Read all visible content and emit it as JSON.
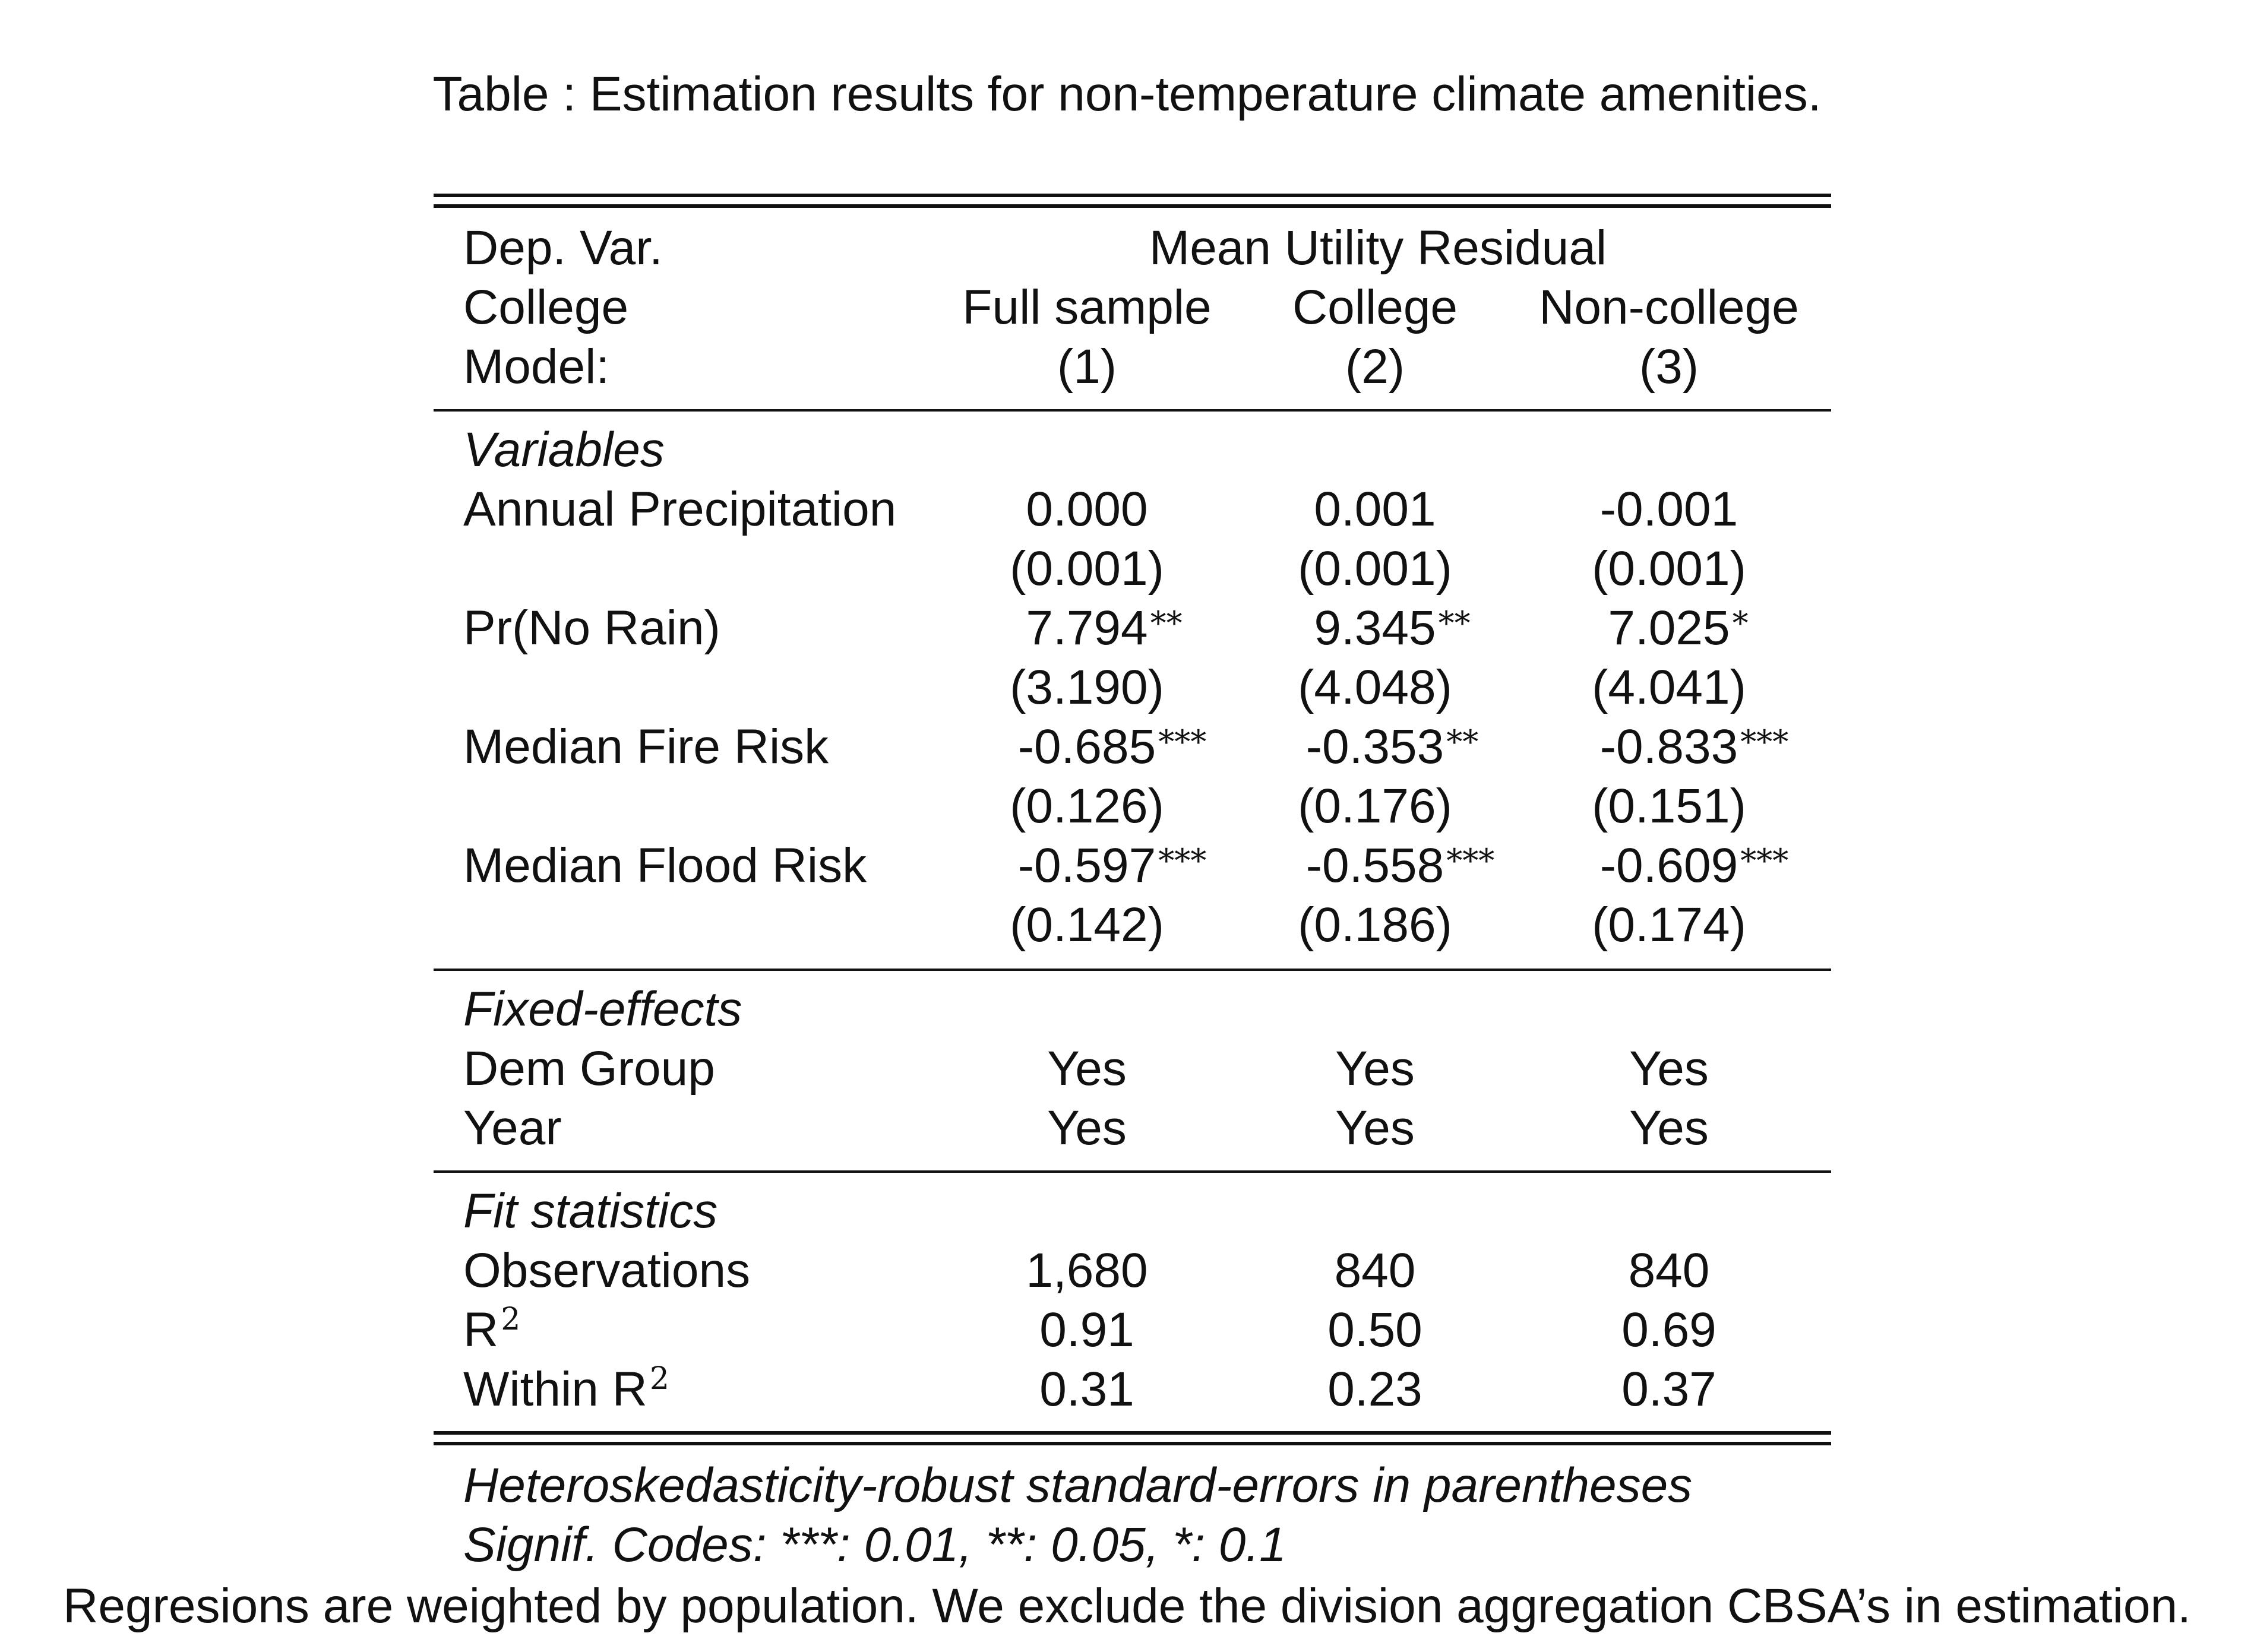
{
  "caption": "Table : Estimation results for non-temperature climate amenities.",
  "header": {
    "dep_var_label": "Dep. Var.",
    "dep_var_value": "Mean Utility Residual",
    "college_label": "College",
    "college_values": [
      "Full sample",
      "College",
      "Non-college"
    ],
    "model_label": "Model:",
    "model_values": [
      "(1)",
      "(2)",
      "(3)"
    ]
  },
  "variables": {
    "section_label": "Variables",
    "rows": [
      {
        "label": "Annual Precipitation",
        "est": [
          "0.000",
          "0.001",
          "-0.001"
        ],
        "stars": [
          "",
          "",
          ""
        ],
        "se": [
          "(0.001)",
          "(0.001)",
          "(0.001)"
        ]
      },
      {
        "label": "Pr(No Rain)",
        "est": [
          "7.794",
          "9.345",
          "7.025"
        ],
        "stars": [
          "**",
          "**",
          "*"
        ],
        "se": [
          "(3.190)",
          "(4.048)",
          "(4.041)"
        ]
      },
      {
        "label": "Median Fire Risk",
        "est": [
          "-0.685",
          "-0.353",
          "-0.833"
        ],
        "stars": [
          "***",
          "**",
          "***"
        ],
        "se": [
          "(0.126)",
          "(0.176)",
          "(0.151)"
        ]
      },
      {
        "label": "Median Flood Risk",
        "est": [
          "-0.597",
          "-0.558",
          "-0.609"
        ],
        "stars": [
          "***",
          "***",
          "***"
        ],
        "se": [
          "(0.142)",
          "(0.186)",
          "(0.174)"
        ]
      }
    ]
  },
  "fixed_effects": {
    "section_label": "Fixed-effects",
    "rows": [
      {
        "label": "Dem Group",
        "values": [
          "Yes",
          "Yes",
          "Yes"
        ]
      },
      {
        "label": "Year",
        "values": [
          "Yes",
          "Yes",
          "Yes"
        ]
      }
    ]
  },
  "fit_statistics": {
    "section_label": "Fit statistics",
    "observations_label": "Observations",
    "observations": [
      "1,680",
      "840",
      "840"
    ],
    "r2_label": "R",
    "r2_sup": "2",
    "r2": [
      "0.91",
      "0.50",
      "0.69"
    ],
    "within_r2_label": "Within R",
    "within_r2_sup": "2",
    "within_r2": [
      "0.31",
      "0.23",
      "0.37"
    ]
  },
  "notes": {
    "se_note": "Heteroskedasticity-robust standard-errors in parentheses",
    "signif_note": "Signif. Codes: ***: 0.01, **: 0.05, *: 0.1"
  },
  "footer": "Regresions are weighted by population. We exclude the division aggregation CBSA’s in estimation."
}
